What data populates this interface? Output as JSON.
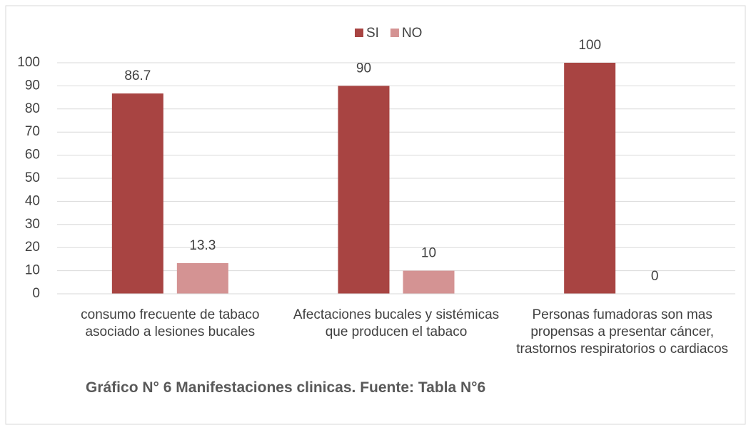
{
  "chart_data": {
    "type": "bar",
    "title": "Gráfico N° 6 Manifestaciones clinicas. Fuente: Tabla N°6",
    "categories": [
      "consumo frecuente de tabaco asociado a lesiones bucales",
      "Afectaciones bucales y sistémicas que producen el tabaco",
      "Personas fumadoras son mas propensas a presentar cáncer, trastornos respiratorios o cardiacos"
    ],
    "series": [
      {
        "name": "SI",
        "color": "#a84442",
        "values": [
          86.7,
          90,
          100
        ]
      },
      {
        "name": "NO",
        "color": "#d49393",
        "values": [
          13.3,
          10,
          0
        ]
      }
    ],
    "ylim": [
      0,
      100
    ],
    "yticks": [
      0,
      10,
      20,
      30,
      40,
      50,
      60,
      70,
      80,
      90,
      100
    ],
    "grid": true,
    "legend": "top"
  }
}
